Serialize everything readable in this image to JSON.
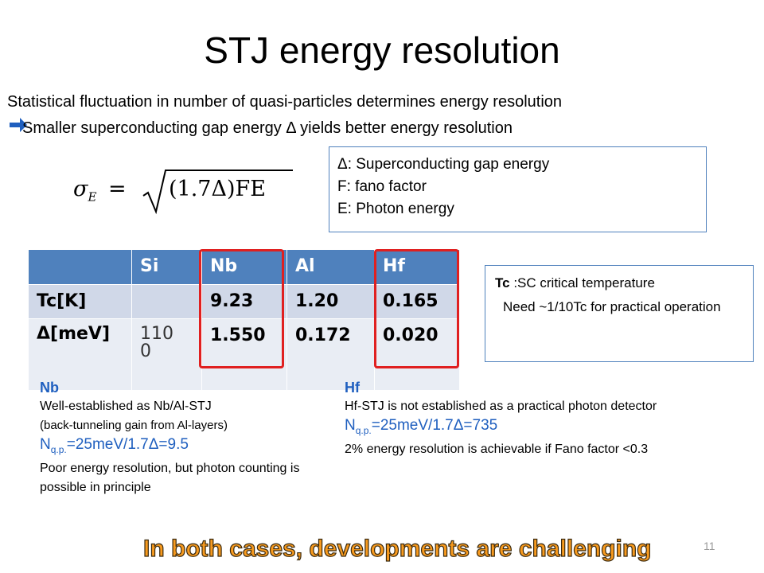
{
  "title": "STJ energy resolution",
  "intro": [
    "Statistical fluctuation in number of quasi-particles determines energy resolution",
    "Smaller superconducting gap energy Δ yields better energy resolution"
  ],
  "formula": {
    "lhs": "σ",
    "lhs_sub": "E",
    "eq": "=",
    "radicand": "(1.7Δ)FE"
  },
  "legend_box": [
    "Δ: Superconducting gap energy",
    "F: fano factor",
    "E: Photon energy"
  ],
  "table": {
    "columns": [
      "Si",
      "Nb",
      "Al",
      "Hf"
    ],
    "rows": [
      {
        "label": "Tc[K]",
        "cells": [
          null,
          "9.23",
          "1.20",
          "0.165"
        ]
      },
      {
        "label": "Δ[meV]",
        "cells": [
          "1100",
          "1.550",
          "0.172",
          "0.020"
        ]
      }
    ]
  },
  "tc_box": {
    "line1_bold": "Tc",
    "line1": ":SC critical temperature",
    "line2": "Need ~1/10Tc for practical operation"
  },
  "nb": {
    "heading": "Nb",
    "line1": "Well-established as Nb/Al-STJ",
    "line2": "(back-tunneling gain from Al-layers)",
    "n": "N",
    "n_sub": "q.p.",
    "n_rest": "=25meV/1.7Δ=9.5",
    "line4": "Poor energy resolution, but photon counting is possible in principle"
  },
  "hf": {
    "heading": "Hf",
    "line1": "Hf-STJ is not established as a practical photon detector",
    "n": "N",
    "n_sub": "q.p.",
    "n_rest": "=25meV/1.7Δ=735",
    "line3": "2% energy resolution is achievable if Fano factor <0.3"
  },
  "conclusion": "In both cases, developments are challenging",
  "page_number": "11"
}
